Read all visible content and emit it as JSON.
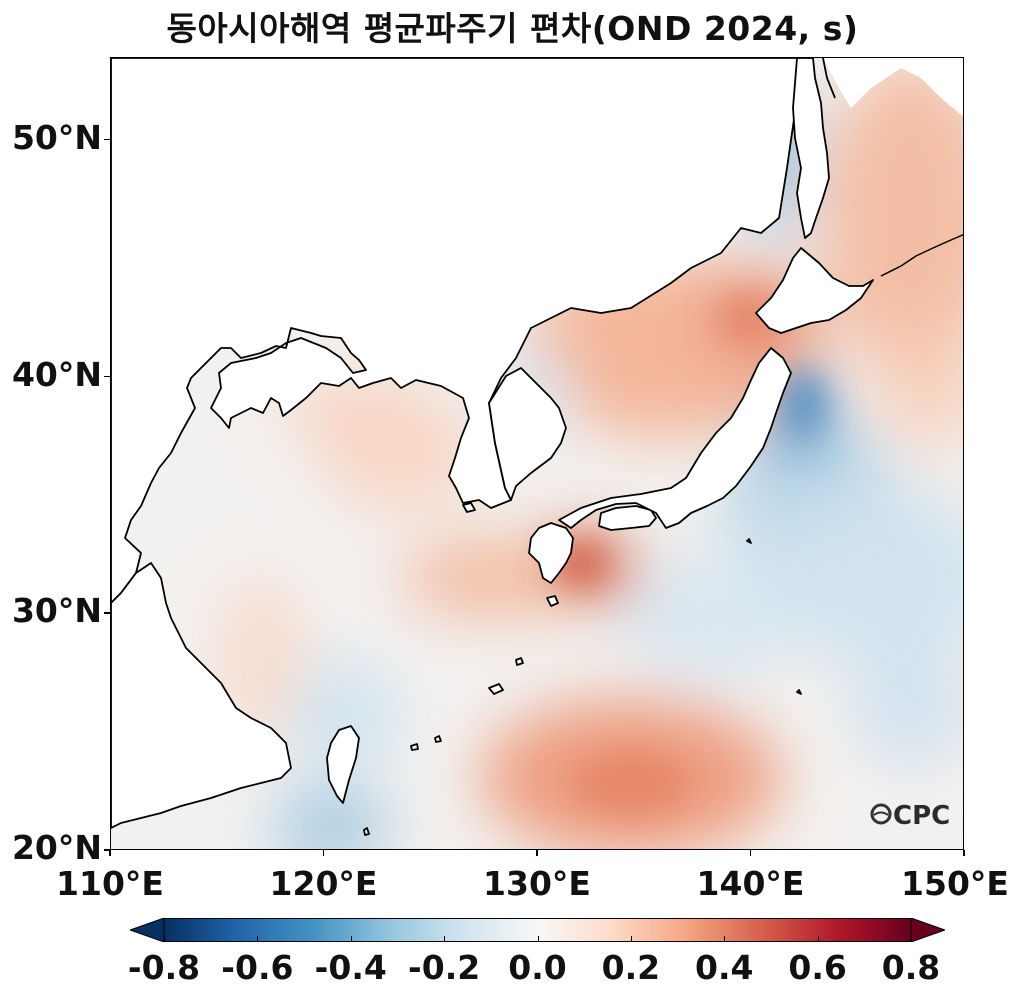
{
  "title": "동아시아해역 평균파주기 편차(OND 2024, s)",
  "map": {
    "region": "East Asian Seas",
    "lon_range": [
      110,
      150
    ],
    "lat_range": [
      20,
      53.5
    ],
    "y_ticks": [
      {
        "value": 50,
        "label": "50°N"
      },
      {
        "value": 40,
        "label": "40°N"
      },
      {
        "value": 30,
        "label": "30°N"
      },
      {
        "value": 20,
        "label": "20°N"
      }
    ],
    "x_ticks": [
      {
        "value": 110,
        "label": "110°E"
      },
      {
        "value": 120,
        "label": "120°E"
      },
      {
        "value": 130,
        "label": "130°E"
      },
      {
        "value": 140,
        "label": "140°E"
      },
      {
        "value": 150,
        "label": "150°E"
      }
    ],
    "logo_text": "OCPC"
  },
  "colorbar": {
    "colormap": "RdBu_r",
    "range": [
      -0.8,
      0.8
    ],
    "extend": "both",
    "colors": [
      "#053061",
      "#2166ac",
      "#4393c3",
      "#92c5de",
      "#d1e5f0",
      "#f7f7f7",
      "#fddbc7",
      "#f4a582",
      "#d6604d",
      "#b2182b",
      "#67001f"
    ],
    "ticks": [
      {
        "value": -0.8,
        "label": "-0.8"
      },
      {
        "value": -0.6,
        "label": "-0.6"
      },
      {
        "value": -0.4,
        "label": "-0.4"
      },
      {
        "value": -0.2,
        "label": "-0.2"
      },
      {
        "value": 0.0,
        "label": "0.0"
      },
      {
        "value": 0.2,
        "label": "0.2"
      },
      {
        "value": 0.4,
        "label": "0.4"
      },
      {
        "value": 0.6,
        "label": "0.6"
      },
      {
        "value": 0.8,
        "label": "0.8"
      }
    ]
  }
}
